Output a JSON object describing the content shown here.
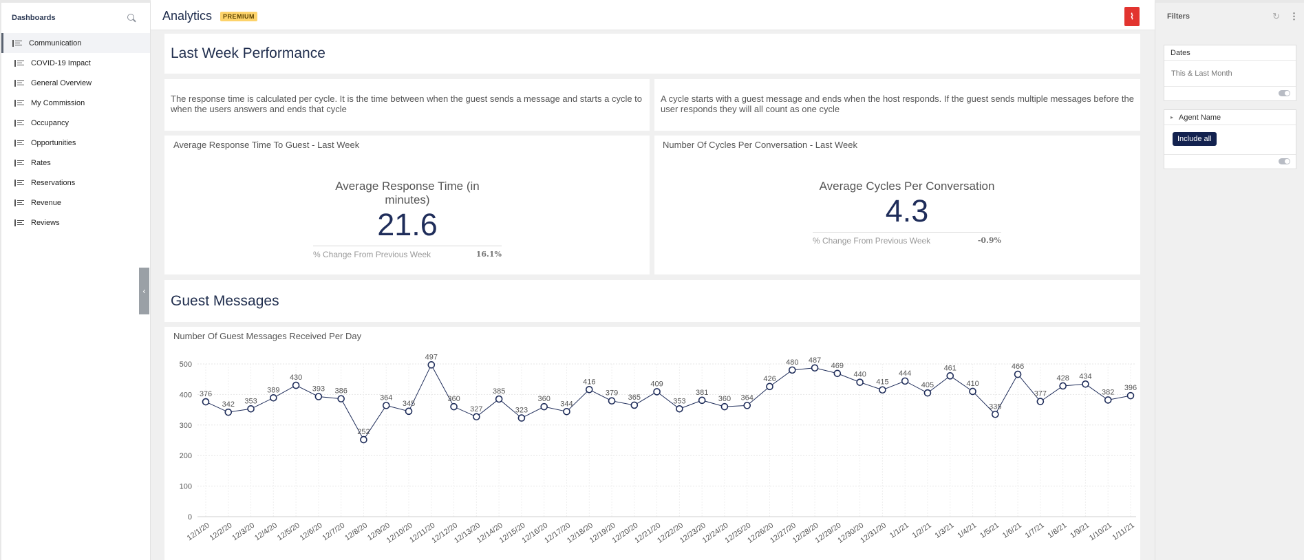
{
  "sidebar": {
    "title": "Dashboards",
    "items": [
      {
        "label": "Communication",
        "active": true
      },
      {
        "label": "COVID-19 Impact"
      },
      {
        "label": "General Overview"
      },
      {
        "label": "My Commission"
      },
      {
        "label": "Occupancy"
      },
      {
        "label": "Opportunities"
      },
      {
        "label": "Rates"
      },
      {
        "label": "Reservations"
      },
      {
        "label": "Revenue"
      },
      {
        "label": "Reviews"
      }
    ]
  },
  "header": {
    "title": "Analytics",
    "badge": "PREMIUM",
    "pdf_icon": "pdf-export-icon"
  },
  "sections": {
    "performance_title": "Last Week Performance",
    "messages_title": "Guest Messages"
  },
  "text_cards": {
    "left": "The response time is calculated per cycle. It is the time between when the guest sends a message and starts a cycle to when the users answers and ends that cycle",
    "right": "A cycle starts with a guest message and ends when the host responds. If the guest sends multiple messages before the user responds they will all count as one cycle"
  },
  "kpis": {
    "response": {
      "card_title": "Average Response Time To Guest - Last Week",
      "label": "Average Response Time (in minutes)",
      "value": "21.6",
      "footer_label": "% Change From Previous Week",
      "footer_value": "16.1%"
    },
    "cycles": {
      "card_title": "Number Of Cycles Per Conversation - Last Week",
      "label": "Average Cycles Per Conversation",
      "value": "4.3",
      "footer_label": "% Change From Previous Week",
      "footer_value": "-0.9%"
    }
  },
  "chart_data": {
    "type": "line",
    "title": "Number Of Guest Messages Received Per Day",
    "xlabel": "",
    "ylabel": "",
    "ylim": [
      0,
      500
    ],
    "yticks": [
      0,
      100,
      200,
      300,
      400,
      500
    ],
    "grid": true,
    "line_color": "#1f2d5a",
    "categories": [
      "12/1/20",
      "12/2/20",
      "12/3/20",
      "12/4/20",
      "12/5/20",
      "12/6/20",
      "12/7/20",
      "12/8/20",
      "12/9/20",
      "12/10/20",
      "12/11/20",
      "12/12/20",
      "12/13/20",
      "12/14/20",
      "12/15/20",
      "12/16/20",
      "12/17/20",
      "12/18/20",
      "12/19/20",
      "12/20/20",
      "12/21/20",
      "12/22/20",
      "12/23/20",
      "12/24/20",
      "12/25/20",
      "12/26/20",
      "12/27/20",
      "12/28/20",
      "12/29/20",
      "12/30/20",
      "12/31/20",
      "1/1/21",
      "1/2/21",
      "1/3/21",
      "1/4/21",
      "1/5/21",
      "1/6/21",
      "1/7/21",
      "1/8/21",
      "1/9/21",
      "1/10/21",
      "1/11/21"
    ],
    "values": [
      376,
      342,
      353,
      389,
      430,
      393,
      386,
      252,
      364,
      345,
      497,
      360,
      327,
      385,
      323,
      360,
      344,
      416,
      379,
      365,
      409,
      353,
      381,
      360,
      364,
      426,
      480,
      487,
      469,
      440,
      415,
      444,
      405,
      461,
      410,
      335,
      466,
      377,
      428,
      434,
      382,
      396
    ]
  },
  "filters": {
    "title": "Filters",
    "refresh_icon": "refresh-icon",
    "more_icon": "more-vertical-icon",
    "dates": {
      "label": "Dates",
      "value": "This & Last Month"
    },
    "agent": {
      "label": "Agent Name",
      "button": "Include all"
    }
  },
  "collapse": {
    "left": "‹",
    "right": "›"
  }
}
